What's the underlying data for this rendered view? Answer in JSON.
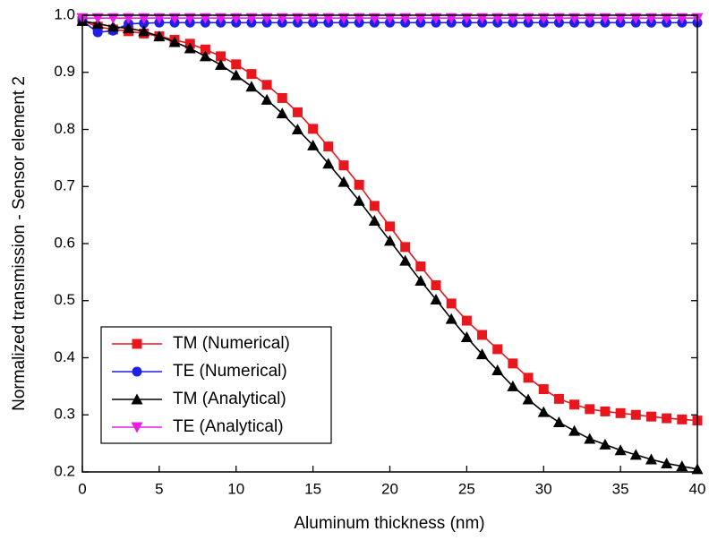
{
  "chart_data": {
    "type": "line",
    "x_label": "Aluminum thickness (nm)",
    "y_label": "Normalized transmission - Sensor element 2",
    "x": [
      0,
      1,
      2,
      3,
      4,
      5,
      6,
      7,
      8,
      9,
      10,
      11,
      12,
      13,
      14,
      15,
      16,
      17,
      18,
      19,
      20,
      21,
      22,
      23,
      24,
      25,
      26,
      27,
      28,
      29,
      30,
      31,
      32,
      33,
      34,
      35,
      36,
      37,
      38,
      39,
      40
    ],
    "xlim": [
      0,
      40
    ],
    "xticks": [
      0,
      5,
      10,
      15,
      20,
      25,
      30,
      35,
      40
    ],
    "ylim": [
      0.2,
      1.0
    ],
    "yticks": [
      0.2,
      0.3,
      0.4,
      0.5,
      0.6,
      0.7,
      0.8,
      0.9,
      {
        "value": 1.0,
        "label": "1.0"
      }
    ],
    "legend": "lower left",
    "series": [
      {
        "name": "TM (Numerical)",
        "color": "#e8171d",
        "marker": "square",
        "values": [
          0.99,
          0.98,
          0.975,
          0.972,
          0.968,
          0.963,
          0.957,
          0.95,
          0.94,
          0.928,
          0.914,
          0.897,
          0.878,
          0.855,
          0.83,
          0.801,
          0.77,
          0.737,
          0.703,
          0.666,
          0.63,
          0.594,
          0.56,
          0.527,
          0.495,
          0.465,
          0.44,
          0.415,
          0.39,
          0.365,
          0.345,
          0.328,
          0.318,
          0.31,
          0.306,
          0.303,
          0.3,
          0.297,
          0.294,
          0.292,
          0.29
        ]
      },
      {
        "name": "TE (Numerical)",
        "color": "#1f1fe6",
        "marker": "circle",
        "values": [
          0.99,
          0.97,
          0.973,
          0.985,
          0.986,
          0.987,
          0.987,
          0.987,
          0.987,
          0.987,
          0.987,
          0.987,
          0.987,
          0.987,
          0.987,
          0.987,
          0.987,
          0.987,
          0.987,
          0.987,
          0.987,
          0.987,
          0.987,
          0.987,
          0.987,
          0.987,
          0.987,
          0.987,
          0.987,
          0.987,
          0.987,
          0.987,
          0.987,
          0.987,
          0.987,
          0.987,
          0.987,
          0.987,
          0.987,
          0.987,
          0.987
        ]
      },
      {
        "name": "TM (Analytical)",
        "color": "#000000",
        "marker": "triangle-up",
        "values": [
          0.99,
          0.985,
          0.98,
          0.977,
          0.972,
          0.963,
          0.953,
          0.942,
          0.928,
          0.913,
          0.895,
          0.875,
          0.852,
          0.828,
          0.8,
          0.772,
          0.74,
          0.708,
          0.675,
          0.64,
          0.605,
          0.57,
          0.535,
          0.502,
          0.468,
          0.436,
          0.406,
          0.378,
          0.35,
          0.327,
          0.305,
          0.287,
          0.272,
          0.258,
          0.248,
          0.238,
          0.23,
          0.222,
          0.215,
          0.21,
          0.205
        ]
      },
      {
        "name": "TE (Analytical)",
        "color": "#e61ee6",
        "marker": "triangle-down",
        "values": [
          0.995,
          0.995,
          0.995,
          0.995,
          0.995,
          0.995,
          0.995,
          0.995,
          0.995,
          0.995,
          0.995,
          0.995,
          0.995,
          0.995,
          0.995,
          0.995,
          0.995,
          0.995,
          0.995,
          0.995,
          0.995,
          0.995,
          0.995,
          0.995,
          0.995,
          0.995,
          0.995,
          0.995,
          0.995,
          0.995,
          0.995,
          0.995,
          0.995,
          0.995,
          0.995,
          0.995,
          0.995,
          0.995,
          0.995,
          0.995,
          0.995
        ]
      }
    ]
  }
}
